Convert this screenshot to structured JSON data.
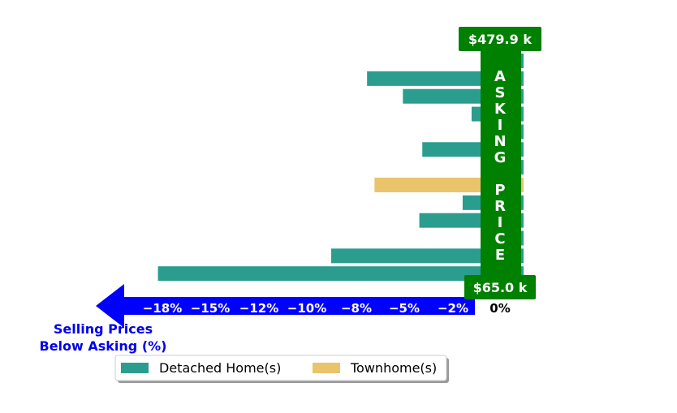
{
  "chart_data": {
    "type": "bar",
    "orientation": "horizontal",
    "series": [
      {
        "name": "Detached Home(s)",
        "color": "#2a9d8f"
      },
      {
        "name": "Townhome(s)",
        "color": "#e9c46a"
      }
    ],
    "bars": [
      {
        "series": 0,
        "value": 0
      },
      {
        "series": 0,
        "value": -7.6
      },
      {
        "series": 0,
        "value": -5.2
      },
      {
        "series": 0,
        "value": -0.6
      },
      {
        "series": 0,
        "value": 0
      },
      {
        "series": 0,
        "value": -3.9
      },
      {
        "series": 0,
        "value": 0
      },
      {
        "series": 1,
        "value": -7.1
      },
      {
        "series": 0,
        "value": -1.2
      },
      {
        "series": 0,
        "value": -4.1
      },
      {
        "series": 0,
        "value": 0
      },
      {
        "series": 0,
        "value": -10.0
      },
      {
        "series": 0,
        "value": -21.6
      }
    ],
    "x_ticks": [
      -18,
      -15,
      -12,
      -10,
      -8,
      -5,
      -2,
      0
    ],
    "x_tick_labels": [
      "−18%",
      "−15%",
      "−12%",
      "−10%",
      "−8%",
      "−5%",
      "−2%",
      "0%"
    ],
    "xlabel": "Selling Prices\nBelow Asking (%)",
    "band_text": "ASKING PRICE",
    "band_color": "#008000",
    "arrow_color": "#0000ff",
    "price_top_label": "$479.9 k",
    "price_bottom_label": "$65.0 k",
    "legend_placement": "bottom-center"
  }
}
